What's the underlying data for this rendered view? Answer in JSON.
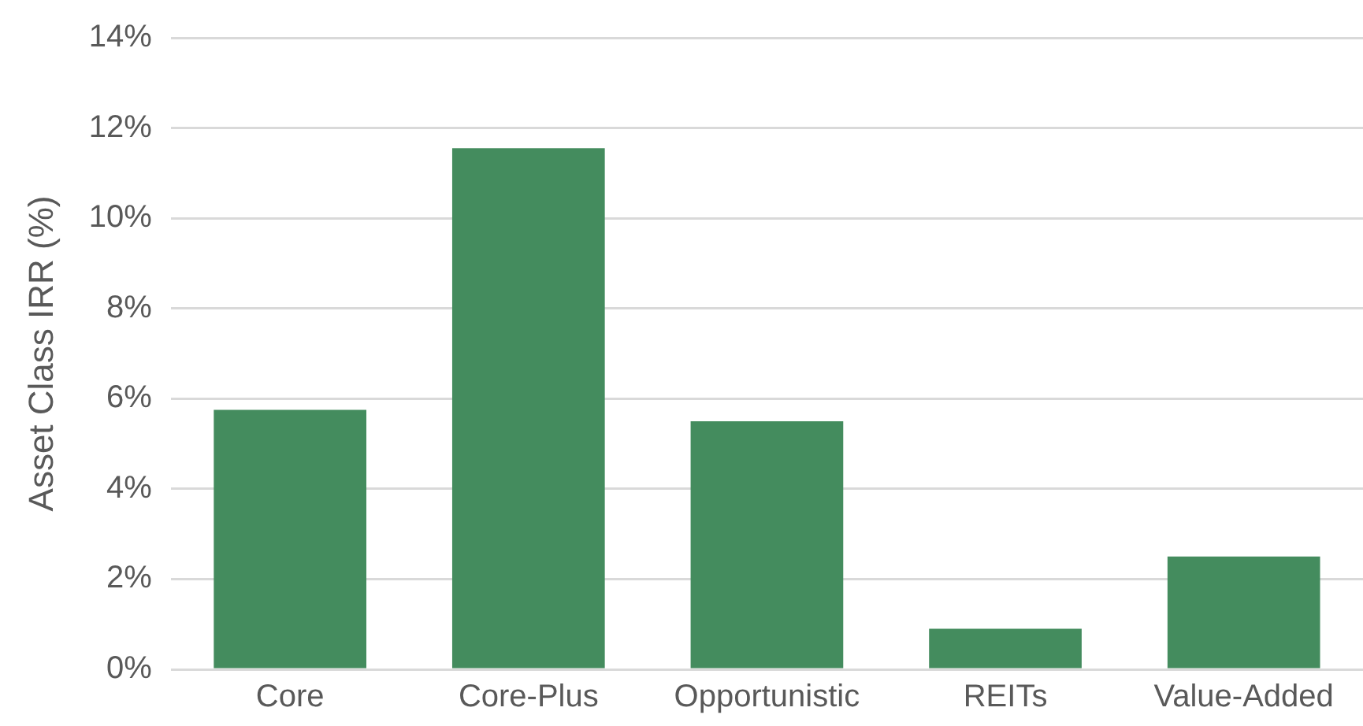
{
  "chart_data": {
    "type": "bar",
    "ylabel": "Asset Class IRR (%)",
    "categories": [
      "Core",
      "Core-Plus",
      "Opportunistic",
      "REITs",
      "Value-Added"
    ],
    "values": [
      5.75,
      11.55,
      5.5,
      0.9,
      2.5
    ],
    "color": "#448c5e",
    "ylim": [
      0,
      14
    ],
    "yticks": [
      {
        "value": 0,
        "label": "0%"
      },
      {
        "value": 2,
        "label": "2%"
      },
      {
        "value": 4,
        "label": "4%"
      },
      {
        "value": 6,
        "label": "6%"
      },
      {
        "value": 8,
        "label": "8%"
      },
      {
        "value": 10,
        "label": "10%"
      },
      {
        "value": 12,
        "label": "12%"
      },
      {
        "value": 14,
        "label": "14%"
      }
    ],
    "grid": "y"
  }
}
